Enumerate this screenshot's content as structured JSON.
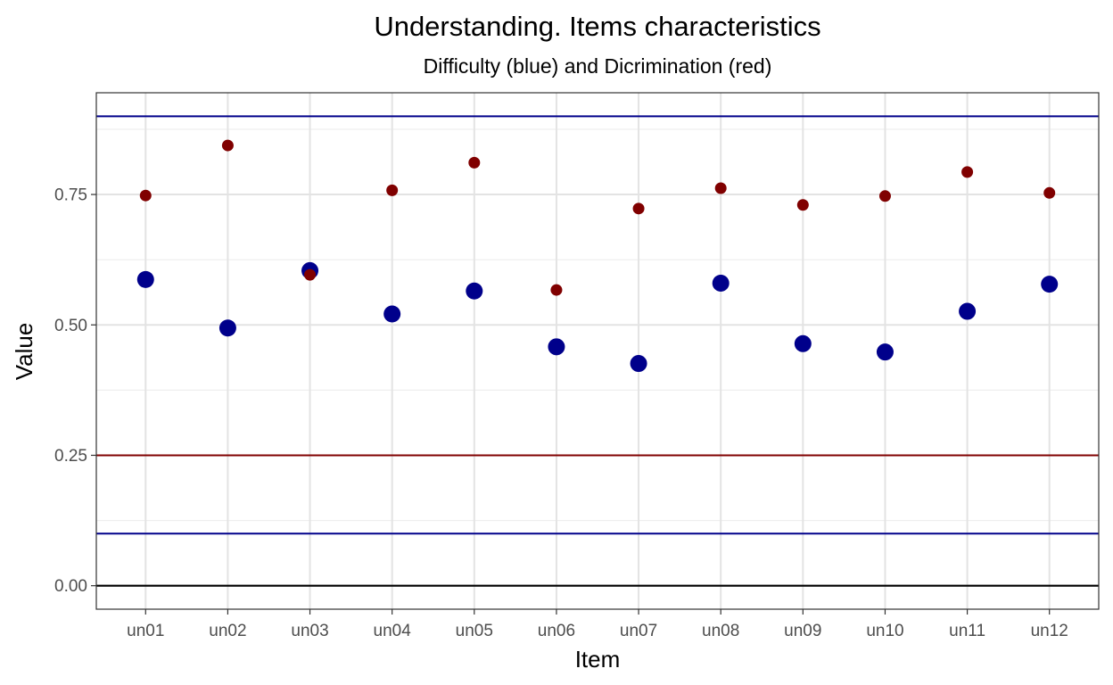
{
  "chart_data": {
    "type": "scatter",
    "title": "Understanding. Items characteristics",
    "subtitle": "Difficulty (blue) and Dicrimination (red)",
    "xlabel": "Item",
    "ylabel": "Value",
    "categories": [
      "un01",
      "un02",
      "un03",
      "un04",
      "un05",
      "un06",
      "un07",
      "un08",
      "un09",
      "un10",
      "un11",
      "un12"
    ],
    "ylim": [
      -0.045,
      0.945
    ],
    "yticks": [
      "0.00",
      "0.25",
      "0.50",
      "0.75"
    ],
    "grid": true,
    "series": [
      {
        "color": "#00008b",
        "values": [
          0.587,
          0.494,
          0.604,
          0.521,
          0.565,
          0.458,
          0.426,
          0.58,
          0.464,
          0.448,
          0.526,
          0.578
        ]
      },
      {
        "color": "#800000",
        "values": [
          0.748,
          0.844,
          0.596,
          0.758,
          0.811,
          0.567,
          0.723,
          0.762,
          0.73,
          0.747,
          0.793,
          0.753
        ]
      }
    ],
    "reference_lines": [
      {
        "y": 0.9,
        "color": "#00008b"
      },
      {
        "y": 0.25,
        "color": "#800000"
      },
      {
        "y": 0.1,
        "color": "#00008b"
      },
      {
        "y": 0.0,
        "color": "#000000"
      }
    ]
  }
}
